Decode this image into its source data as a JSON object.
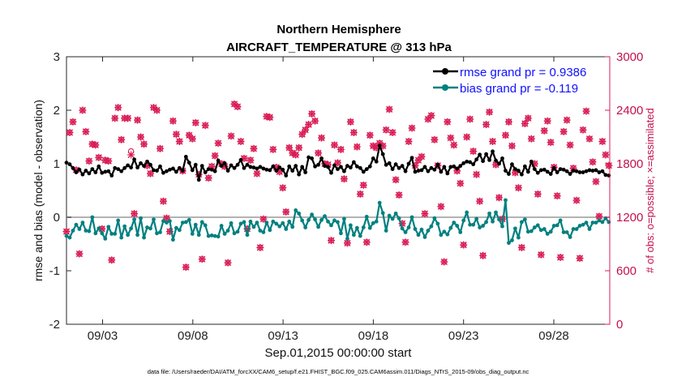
{
  "chart_data": {
    "type": "line",
    "title": "Northern Hemisphere",
    "subtitle": "AIRCRAFT_TEMPERATURE @ 313 hPa",
    "xlabel": "Sep.01,2015 00:00:00 start",
    "ylabel_left": "rmse and bias (model - observation)",
    "ylabel_right": "# of obs: o=possible; ×=assimilated",
    "footer": "data file: /Users/raeder/DAI/ATM_forcXX/CAM6_setup/f.e21.FHIST_BGC.f09_025.CAM6assim.011/Diags_NTrS_2015-09/obs_diag_output.nc",
    "x_ticks": [
      "09/03",
      "09/08",
      "09/13",
      "09/18",
      "09/23",
      "09/28"
    ],
    "x_tick_days": [
      3,
      8,
      13,
      18,
      23,
      28
    ],
    "xlim_days": [
      1.0,
      31.1
    ],
    "ylim_left": [
      -2,
      3
    ],
    "ytick_left": [
      "-2",
      "-1",
      "0",
      "1",
      "2",
      "3"
    ],
    "ylim_right": [
      0,
      3000
    ],
    "ytick_right": [
      "0",
      "600",
      "1200",
      "1800",
      "2400",
      "3000"
    ],
    "legend": [
      "rmse grand pr = 0.9386",
      "bias grand pr = -0.119"
    ],
    "colors": {
      "rmse": "#000000",
      "bias": "#00807f",
      "obs": "#d91d55",
      "zero": "#b3b3b3"
    },
    "series": [
      {
        "name": "rmse",
        "values": [
          1.02,
          0.99,
          0.92,
          0.84,
          0.89,
          0.8,
          0.87,
          0.82,
          0.9,
          0.84,
          0.95,
          0.83,
          0.85,
          0.86,
          0.78,
          0.92,
          0.9,
          0.86,
          0.92,
          0.97,
          0.93,
          1.08,
          0.93,
          1.01,
          0.96,
          1.04,
          0.98,
          0.88,
          0.87,
          0.95,
          0.83,
          0.86,
          0.89,
          0.91,
          0.85,
          0.92,
          0.87,
          1.13,
          1.02,
          0.88,
          0.98,
          0.7,
          0.96,
          0.84,
          0.9,
          0.89,
          0.86,
          1.06,
          0.96,
          1.01,
          0.87,
          0.97,
          0.92,
          0.98,
          1.07,
          0.92,
          0.98,
          0.94,
          0.93,
          0.91,
          0.94,
          0.91,
          0.89,
          0.88,
          0.95,
          0.87,
          0.93,
          0.89,
          0.78,
          0.95,
          0.87,
          0.96,
          0.8,
          0.94,
          0.84,
          1.12,
          1.1,
          0.95,
          0.98,
          1.1,
          0.96,
          0.94,
          0.83,
          0.97,
          0.9,
          0.94,
          0.86,
          0.96,
          0.93,
          1.03,
          0.95,
          0.92,
          0.85,
          0.9,
          0.95,
          1.1,
          1.04,
          1.34,
          1.18,
          0.98,
          1.01,
          0.9,
          0.99,
          0.92,
          0.96,
          0.86,
          1.0,
          1.11,
          0.85,
          0.87,
          0.88,
          0.94,
          0.86,
          0.92,
          0.89,
          0.98,
          0.85,
          0.94,
          0.82,
          0.94,
          0.95,
          0.91,
          0.96,
          1.01,
          1.04,
          1.03,
          0.99,
          1.08,
          1.17,
          1.05,
          1.18,
          1.07,
          1.23,
          1.06,
          1.0,
          1.1,
          0.87,
          0.81,
          0.99,
          0.9,
          0.87,
          0.8,
          0.95,
          0.85,
          1.04,
          0.9,
          0.83,
          0.88,
          0.89,
          0.85,
          0.81,
          0.92,
          0.84,
          0.9,
          0.89,
          0.86,
          0.81,
          0.87,
          0.86,
          0.84,
          0.84,
          0.86,
          0.88,
          0.87,
          0.88,
          0.84,
          0.86,
          0.79,
          0.78
        ]
      },
      {
        "name": "bias",
        "values": [
          -0.35,
          -0.38,
          -0.25,
          -0.14,
          -0.22,
          -0.1,
          -0.25,
          -0.26,
          0.0,
          -0.3,
          -0.21,
          -0.3,
          -0.4,
          -0.18,
          -0.31,
          -0.31,
          -0.06,
          -0.38,
          -0.17,
          -0.33,
          -0.21,
          -0.04,
          -0.33,
          -0.02,
          -0.38,
          -0.19,
          -0.21,
          -0.04,
          -0.3,
          -0.28,
          -0.07,
          -0.1,
          -0.07,
          -0.42,
          -0.2,
          -0.24,
          -0.1,
          -0.09,
          -0.05,
          -0.31,
          -0.14,
          -0.33,
          -0.09,
          -0.15,
          -0.35,
          -0.34,
          -0.35,
          -0.36,
          -0.16,
          -0.31,
          -0.25,
          -0.11,
          -0.3,
          -0.27,
          -0.12,
          -0.09,
          -0.33,
          -0.08,
          -0.18,
          -0.1,
          -0.25,
          -0.28,
          -0.1,
          -0.24,
          -0.08,
          -0.12,
          -0.17,
          -0.11,
          -0.22,
          -0.08,
          -0.18,
          0.13,
          0.07,
          -0.06,
          -0.19,
          -0.05,
          0.05,
          -0.04,
          -0.18,
          -0.05,
          0.02,
          -0.08,
          -0.15,
          -0.06,
          -0.09,
          -0.3,
          -0.03,
          -0.4,
          -0.15,
          -0.33,
          -0.2,
          -0.35,
          -0.19,
          0.01,
          -0.2,
          -0.11,
          -0.08,
          0.27,
          0.08,
          -0.25,
          0.03,
          -0.03,
          0.07,
          -0.02,
          -0.21,
          -0.28,
          -0.19,
          0.0,
          -0.22,
          -0.33,
          -0.23,
          -0.37,
          -0.25,
          -0.17,
          -0.02,
          -0.12,
          -0.33,
          -0.27,
          -0.32,
          -0.2,
          -0.1,
          -0.16,
          -0.28,
          -0.06,
          0.09,
          -0.14,
          -0.14,
          -0.03,
          -0.19,
          -0.16,
          -0.09,
          0.07,
          -0.08,
          0.09,
          -0.04,
          -0.17,
          0.32,
          -0.48,
          -0.43,
          -0.21,
          -0.38,
          -0.09,
          -0.04,
          -0.27,
          -0.26,
          -0.19,
          -0.15,
          -0.24,
          -0.22,
          -0.31,
          -0.27,
          -0.16,
          -0.15,
          -0.06,
          -0.28,
          -0.28,
          -0.37,
          -0.22,
          -0.22,
          -0.16,
          -0.14,
          -0.1,
          -0.22,
          -0.1,
          -0.1,
          -0.06,
          -0.09,
          -0.02,
          -0.09
        ]
      },
      {
        "name": "obs_possible",
        "values": [
          1040,
          2150,
          2270,
          1730,
          790,
          2400,
          2160,
          1830,
          2020,
          2010,
          1870,
          1070,
          1840,
          1830,
          720,
          2310,
          2430,
          2070,
          2310,
          2310,
          1940,
          1240,
          2290,
          2100,
          2020,
          1780,
          1690,
          2430,
          2400,
          1970,
          1380,
          1190,
          1040,
          2280,
          2130,
          2050,
          1720,
          640,
          2120,
          2080,
          2260,
          1680,
          730,
          2230,
          1640,
          1770,
          1890,
          2030,
          1800,
          1770,
          690,
          2110,
          2470,
          2440,
          2050,
          1860,
          1070,
          1840,
          1970,
          1690,
          860,
          1180,
          2330,
          2320,
          1960,
          1760,
          1710,
          1530,
          1260,
          1980,
          1920,
          1900,
          1980,
          2130,
          2180,
          2240,
          2360,
          2280,
          1920,
          2090,
          1800,
          1790,
          940,
          2010,
          1810,
          1960,
          1630,
          910,
          2270,
          2150,
          1990,
          1460,
          1560,
          920,
          2120,
          2000,
          1980,
          2030,
          2000,
          2180,
          2410,
          2150,
          1620,
          1450,
          1130,
          920,
          2050,
          2200,
          1780,
          1840,
          1880,
          1240,
          2300,
          2340,
          2070,
          1780,
          1320,
          700,
          2270,
          2090,
          2010,
          1720,
          1580,
          890,
          2100,
          2300,
          1940,
          1680,
          1380,
          770,
          2240,
          2380,
          2050,
          1790,
          1420,
          1180,
          2120,
          2270,
          2000,
          1700,
          1530,
          860,
          2250,
          2310,
          2080,
          1800,
          1460,
          780,
          2170,
          2280,
          2040,
          1760,
          1440,
          750,
          2160,
          2290,
          2010,
          1750,
          1390,
          740,
          2180,
          2390,
          2080,
          1820,
          1600,
          1210,
          2050,
          1900,
          1780
        ]
      },
      {
        "name": "obs_assimilated",
        "values": [
          1040,
          2150,
          2270,
          1730,
          790,
          2400,
          2160,
          1830,
          2020,
          2010,
          1870,
          1070,
          1840,
          1830,
          720,
          2310,
          2430,
          2070,
          2310,
          2310,
          1900,
          1240,
          2290,
          2100,
          2020,
          1780,
          1690,
          2430,
          2400,
          1970,
          1380,
          1190,
          1040,
          2280,
          2130,
          2050,
          1720,
          640,
          2120,
          2080,
          2260,
          1680,
          730,
          2230,
          1640,
          1770,
          1890,
          2030,
          1800,
          1770,
          690,
          2110,
          2470,
          2440,
          2050,
          1860,
          1070,
          1840,
          1970,
          1690,
          860,
          1180,
          2330,
          2320,
          1960,
          1760,
          1710,
          1530,
          1260,
          1980,
          1920,
          1900,
          1980,
          2130,
          2180,
          2240,
          2360,
          2280,
          1920,
          2090,
          1800,
          1790,
          940,
          2010,
          1810,
          1960,
          1630,
          910,
          2270,
          2150,
          1990,
          1460,
          1560,
          920,
          2120,
          2000,
          1980,
          2030,
          2000,
          2180,
          2410,
          2150,
          1620,
          1450,
          1130,
          920,
          2050,
          2200,
          1780,
          1840,
          1880,
          1240,
          2300,
          2340,
          2070,
          1780,
          1320,
          700,
          2270,
          2090,
          2010,
          1720,
          1580,
          890,
          2100,
          2300,
          1940,
          1680,
          1380,
          770,
          2240,
          2380,
          2050,
          1790,
          1420,
          1180,
          2120,
          2270,
          2000,
          1700,
          1530,
          860,
          2250,
          2310,
          2080,
          1800,
          1460,
          780,
          2170,
          2280,
          2040,
          1760,
          1440,
          750,
          2160,
          2290,
          2010,
          1750,
          1390,
          740,
          2180,
          2390,
          2080,
          1820,
          1600,
          1210,
          2050,
          1900,
          1780
        ]
      }
    ]
  }
}
